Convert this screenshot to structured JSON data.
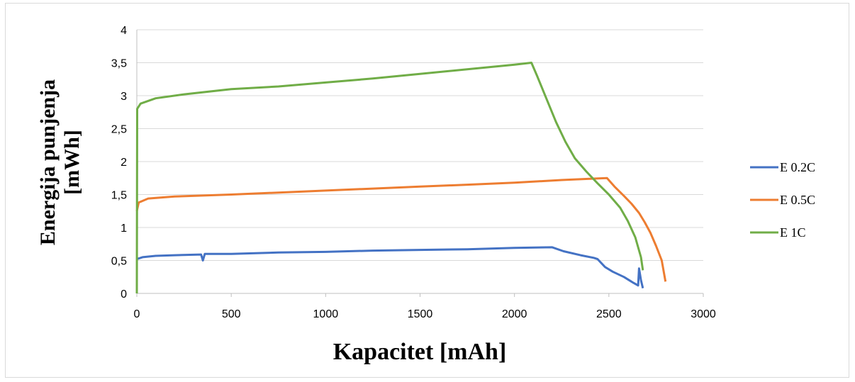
{
  "chart_data": {
    "type": "line",
    "title": "",
    "xlabel": "Kapacitet [mAh]",
    "ylabel_lines": [
      "Energija punjenja",
      "[mWh]"
    ],
    "xlim": [
      0,
      3000
    ],
    "ylim": [
      0,
      4
    ],
    "x_ticks": [
      0,
      500,
      1000,
      1500,
      2000,
      2500,
      3000
    ],
    "x_tick_labels": [
      "0",
      "500",
      "1000",
      "1500",
      "2000",
      "2500",
      "3000"
    ],
    "y_ticks": [
      0,
      0.5,
      1,
      1.5,
      2,
      2.5,
      3,
      3.5,
      4
    ],
    "y_tick_labels": [
      "0",
      "0,5",
      "1",
      "1,5",
      "2",
      "2,5",
      "3",
      "3,5",
      "4"
    ],
    "grid": "horizontal",
    "legend_position": "right",
    "series": [
      {
        "name": "E 0.2C",
        "color": "#4472c4",
        "points": [
          [
            0,
            0.52
          ],
          [
            30,
            0.55
          ],
          [
            100,
            0.57
          ],
          [
            200,
            0.58
          ],
          [
            340,
            0.59
          ],
          [
            350,
            0.5
          ],
          [
            360,
            0.6
          ],
          [
            500,
            0.6
          ],
          [
            750,
            0.62
          ],
          [
            1000,
            0.63
          ],
          [
            1250,
            0.65
          ],
          [
            1500,
            0.66
          ],
          [
            1750,
            0.67
          ],
          [
            2000,
            0.69
          ],
          [
            2200,
            0.7
          ],
          [
            2260,
            0.64
          ],
          [
            2350,
            0.58
          ],
          [
            2420,
            0.54
          ],
          [
            2440,
            0.52
          ],
          [
            2480,
            0.4
          ],
          [
            2520,
            0.33
          ],
          [
            2580,
            0.25
          ],
          [
            2630,
            0.16
          ],
          [
            2655,
            0.12
          ],
          [
            2660,
            0.38
          ],
          [
            2670,
            0.2
          ],
          [
            2680,
            0.08
          ]
        ]
      },
      {
        "name": "E 0.5C",
        "color": "#ed7d31",
        "points": [
          [
            0,
            1.25
          ],
          [
            10,
            1.38
          ],
          [
            60,
            1.44
          ],
          [
            200,
            1.47
          ],
          [
            500,
            1.5
          ],
          [
            750,
            1.53
          ],
          [
            1000,
            1.56
          ],
          [
            1250,
            1.59
          ],
          [
            1500,
            1.62
          ],
          [
            1750,
            1.65
          ],
          [
            2000,
            1.68
          ],
          [
            2250,
            1.72
          ],
          [
            2400,
            1.74
          ],
          [
            2490,
            1.75
          ],
          [
            2530,
            1.62
          ],
          [
            2580,
            1.48
          ],
          [
            2620,
            1.36
          ],
          [
            2660,
            1.22
          ],
          [
            2690,
            1.08
          ],
          [
            2720,
            0.92
          ],
          [
            2750,
            0.72
          ],
          [
            2780,
            0.5
          ],
          [
            2800,
            0.18
          ]
        ]
      },
      {
        "name": "E 1C",
        "color": "#70ad47",
        "points": [
          [
            0,
            0.0
          ],
          [
            2,
            2.8
          ],
          [
            20,
            2.88
          ],
          [
            100,
            2.96
          ],
          [
            250,
            3.02
          ],
          [
            500,
            3.1
          ],
          [
            750,
            3.14
          ],
          [
            1000,
            3.2
          ],
          [
            1250,
            3.26
          ],
          [
            1500,
            3.33
          ],
          [
            1750,
            3.4
          ],
          [
            2000,
            3.47
          ],
          [
            2090,
            3.5
          ],
          [
            2120,
            3.3
          ],
          [
            2170,
            2.95
          ],
          [
            2220,
            2.6
          ],
          [
            2270,
            2.3
          ],
          [
            2320,
            2.05
          ],
          [
            2380,
            1.85
          ],
          [
            2440,
            1.67
          ],
          [
            2500,
            1.5
          ],
          [
            2560,
            1.3
          ],
          [
            2600,
            1.1
          ],
          [
            2640,
            0.85
          ],
          [
            2670,
            0.55
          ],
          [
            2680,
            0.35
          ]
        ]
      }
    ]
  }
}
